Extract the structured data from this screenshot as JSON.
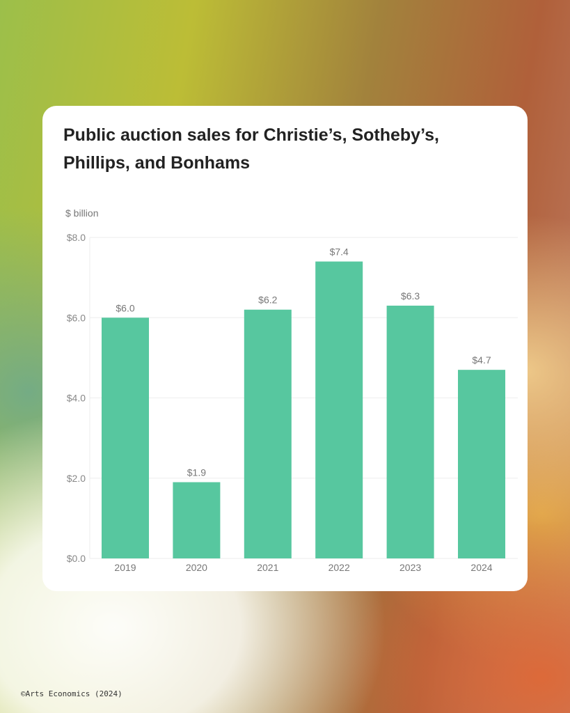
{
  "title": "Public auction sales for Christie’s, Sotheby’s, Phillips, and Bonhams",
  "footer": "©Arts Economics (2024)",
  "colors": {
    "bar": "#57c79f",
    "grid": "#eeeeee",
    "axis_text": "#888888",
    "label_text": "#777777"
  },
  "chart_data": {
    "type": "bar",
    "title": "Public auction sales for Christie’s, Sotheby’s, Phillips, and Bonhams",
    "ylabel": "$ billion",
    "xlabel": "",
    "categories": [
      "2019",
      "2020",
      "2021",
      "2022",
      "2023",
      "2024"
    ],
    "values": [
      6.0,
      1.9,
      6.2,
      7.4,
      6.3,
      4.7
    ],
    "value_labels": [
      "$6.0",
      "$1.9",
      "$6.2",
      "$7.4",
      "$6.3",
      "$4.7"
    ],
    "ylim": [
      0,
      8
    ],
    "yticks": [
      0,
      2,
      4,
      6,
      8
    ],
    "ytick_labels": [
      "$0.0",
      "$2.0",
      "$4.0",
      "$6.0",
      "$8.0"
    ],
    "grid": true,
    "legend": "none"
  }
}
